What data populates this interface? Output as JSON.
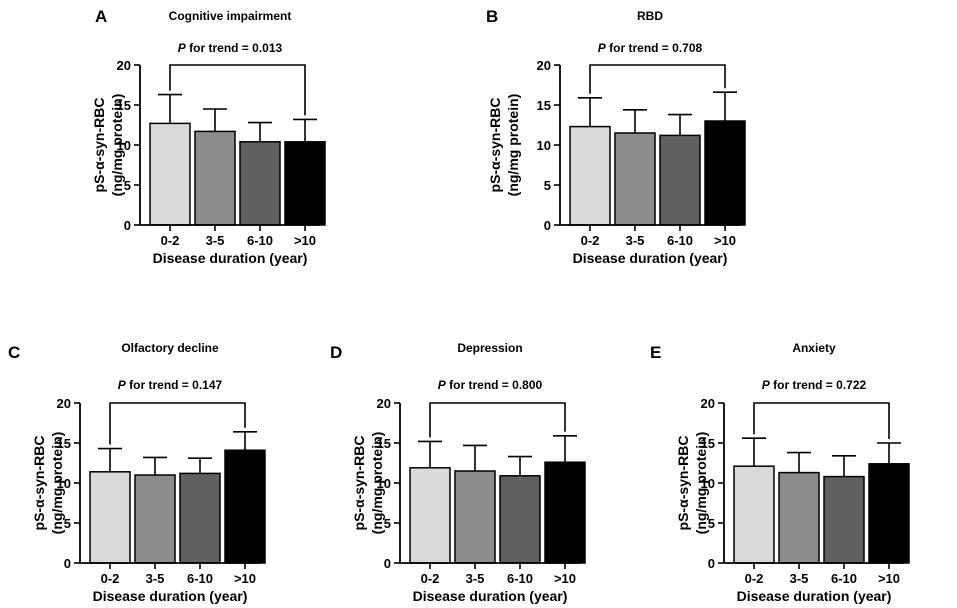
{
  "colors": [
    "#d9d9d9",
    "#8c8c8c",
    "#606060",
    "#000000"
  ],
  "chart_data": [
    {
      "type": "bar",
      "letter": "A",
      "title": "Cognitive impairment",
      "trend_p": "P",
      "trend_rest": " for trend = 0.013",
      "categories": [
        "0-2",
        "3-5",
        "6-10",
        ">10"
      ],
      "values": [
        12.7,
        11.7,
        10.4,
        10.4
      ],
      "errors": [
        3.6,
        2.8,
        2.4,
        2.8
      ],
      "xlabel": "Disease duration (year)",
      "ylabel_line1": "pS-α-syn-RBC",
      "ylabel_line2": "(ng/mg protein)",
      "ylim": [
        0,
        20
      ],
      "yticks": [
        "0",
        "5",
        "10",
        "15",
        "20"
      ]
    },
    {
      "type": "bar",
      "letter": "B",
      "title": "RBD",
      "trend_p": "P",
      "trend_rest": " for trend = 0.708",
      "categories": [
        "0-2",
        "3-5",
        "6-10",
        ">10"
      ],
      "values": [
        12.3,
        11.5,
        11.2,
        13.0
      ],
      "errors": [
        3.6,
        2.9,
        2.6,
        3.6
      ],
      "xlabel": "Disease duration (year)",
      "ylabel_line1": "pS-α-syn-RBC",
      "ylabel_line2": "(ng/mg protein)",
      "ylim": [
        0,
        20
      ],
      "yticks": [
        "0",
        "5",
        "10",
        "15",
        "20"
      ]
    },
    {
      "type": "bar",
      "letter": "C",
      "title": "Olfactory decline",
      "trend_p": "P",
      "trend_rest": " for trend = 0.147",
      "categories": [
        "0-2",
        "3-5",
        "6-10",
        ">10"
      ],
      "values": [
        11.4,
        11.0,
        11.2,
        14.1
      ],
      "errors": [
        2.9,
        2.2,
        1.9,
        2.3
      ],
      "xlabel": "Disease duration (year)",
      "ylabel_line1": "pS-α-syn-RBC",
      "ylabel_line2": "(ng/mg protein)",
      "ylim": [
        0,
        20
      ],
      "yticks": [
        "0",
        "5",
        "10",
        "15",
        "20"
      ]
    },
    {
      "type": "bar",
      "letter": "D",
      "title": "Depression",
      "trend_p": "P",
      "trend_rest": " for trend = 0.800",
      "categories": [
        "0-2",
        "3-5",
        "6-10",
        ">10"
      ],
      "values": [
        11.9,
        11.5,
        10.9,
        12.6
      ],
      "errors": [
        3.3,
        3.2,
        2.4,
        3.3
      ],
      "xlabel": "Disease duration (year)",
      "ylabel_line1": "pS-α-syn-RBC",
      "ylabel_line2": "(ng/mg protein)",
      "ylim": [
        0,
        20
      ],
      "yticks": [
        "0",
        "5",
        "10",
        "15",
        "20"
      ]
    },
    {
      "type": "bar",
      "letter": "E",
      "title": "Anxiety",
      "trend_p": "P",
      "trend_rest": " for trend = 0.722",
      "categories": [
        "0-2",
        "3-5",
        "6-10",
        ">10"
      ],
      "values": [
        12.1,
        11.3,
        10.8,
        12.4
      ],
      "errors": [
        3.5,
        2.5,
        2.6,
        2.6
      ],
      "xlabel": "Disease duration (year)",
      "ylabel_line1": "pS-α-syn-RBC",
      "ylabel_line2": "(ng/mg protein)",
      "ylim": [
        0,
        20
      ],
      "yticks": [
        "0",
        "5",
        "10",
        "15",
        "20"
      ]
    }
  ]
}
